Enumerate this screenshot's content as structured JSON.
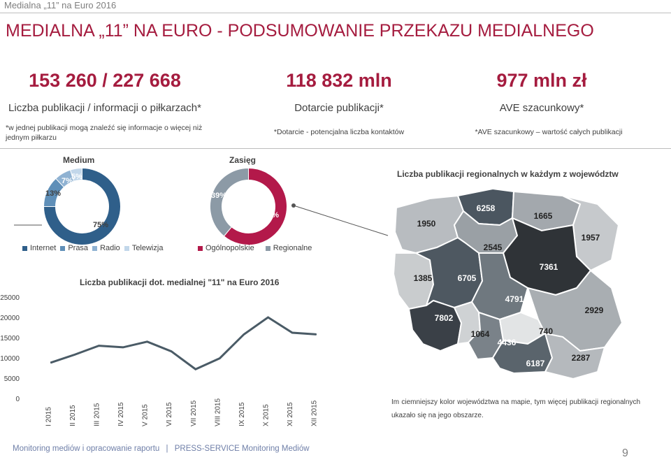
{
  "header": {
    "small_title": "Medialna „11” na Euro 2016",
    "title_main": "MEDIALNA „11” NA EURO",
    "title_rest": " - PODSUMOWANIE PRZEKAZU MEDIALNEGO"
  },
  "kpis": [
    {
      "value": "153 260 / 227 668",
      "label": "Liczba publikacji / informacji o piłkarzach*",
      "note": "*w jednej publikacji mogą znaleźć się informacje o więcej niż jednym piłkarzu"
    },
    {
      "value": "118 832 mln",
      "label": "Dotarcie publikacji*",
      "note": "*Dotarcie - potencjalna liczba kontaktów"
    },
    {
      "value": "977 mln zł",
      "label": "AVE szacunkowy*",
      "note": "*AVE szacunkowy – wartość całych publikacji"
    }
  ],
  "medium": {
    "title": "Medium",
    "slices": [
      {
        "name": "Internet",
        "value": 75,
        "label": "75%",
        "color": "#2f5f8a"
      },
      {
        "name": "Prasa",
        "value": 13,
        "label": "13%",
        "color": "#5f8fb8"
      },
      {
        "name": "Radio",
        "value": 7,
        "label": "7%",
        "color": "#8fb2d2"
      },
      {
        "name": "Telewizja",
        "value": 5,
        "label": "5%",
        "color": "#c2d7ea"
      }
    ]
  },
  "zasieg": {
    "title": "Zasięg",
    "slices": [
      {
        "name": "Ogólnopolskie",
        "value": 61,
        "label": "61%",
        "color": "#b3194a"
      },
      {
        "name": "Regionalne",
        "value": 39,
        "label": "39%",
        "color": "#8c9aa6"
      }
    ]
  },
  "chart_data": {
    "type": "line",
    "title": "Liczba publikacji dot. medialnej \"11\" na Euro 2016",
    "categories": [
      "I 2015",
      "II 2015",
      "III 2015",
      "IV 2015",
      "V 2015",
      "VI 2015",
      "VII 2015",
      "VIII 2015",
      "IX 2015",
      "X 2015",
      "XI 2015",
      "XII 2015"
    ],
    "values": [
      8800,
      10800,
      13000,
      12600,
      14000,
      11600,
      7200,
      9900,
      15800,
      20000,
      16200,
      15800
    ],
    "yticks": [
      0,
      5000,
      10000,
      15000,
      20000,
      25000
    ],
    "ylim": [
      0,
      25000
    ],
    "color": "#4a5b66"
  },
  "map": {
    "title": "Liczba publikacji regionalnych w każdym z województw",
    "regions": [
      {
        "name": "zachodniopomorskie",
        "label": "1950",
        "color": "#b8bcc0"
      },
      {
        "name": "pomorskie",
        "label": "6258",
        "color": "#4b5660"
      },
      {
        "name": "warmińsko-mazurskie",
        "label": "1665",
        "color": "#a3a8ad"
      },
      {
        "name": "podlaskie",
        "label": "1957",
        "color": "#c6c9cc"
      },
      {
        "name": "kujawsko-pomorskie",
        "label": "2545",
        "color": "#9aa0a5"
      },
      {
        "name": "lubuskie",
        "label": "1385",
        "color": "#c9ccce"
      },
      {
        "name": "wielkopolskie",
        "label": "6705",
        "color": "#4e5861"
      },
      {
        "name": "mazowieckie",
        "label": "7361",
        "color": "#2f3337"
      },
      {
        "name": "łódzkie",
        "label": "4791",
        "color": "#6f787f"
      },
      {
        "name": "dolnośląskie",
        "label": "7802",
        "color": "#3a4047"
      },
      {
        "name": "opolskie",
        "label": "1064",
        "color": "#cfd2d4"
      },
      {
        "name": "śląskie",
        "label": "4436",
        "color": "#7a8289"
      },
      {
        "name": "świętokrzyskie",
        "label": "740",
        "color": "#e2e4e5"
      },
      {
        "name": "lubelskie",
        "label": "2929",
        "color": "#a9aeb2"
      },
      {
        "name": "małopolskie",
        "label": "6187",
        "color": "#5a646c"
      },
      {
        "name": "podkarpackie",
        "label": "2287",
        "color": "#b5b9bd"
      }
    ],
    "note": "Im ciemniejszy kolor województwa na mapie, tym więcej publikacji regionalnych ukazało się na jego obszarze."
  },
  "footer": {
    "left": "Monitoring mediów i opracowanie raportu",
    "divider": "|",
    "right": "PRESS-SERVICE Monitoring Mediów",
    "page": "9"
  }
}
